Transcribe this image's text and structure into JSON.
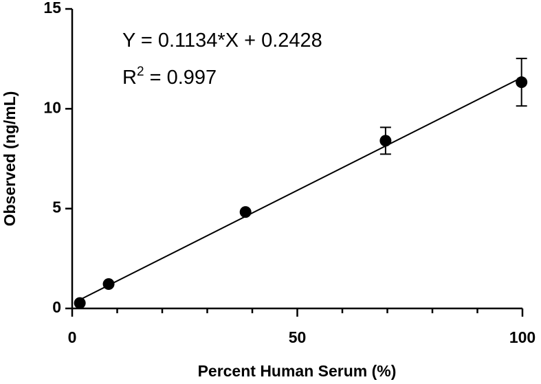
{
  "chart_data": {
    "type": "scatter",
    "x_label": "Percent Human Serum (%)",
    "y_label": "Observed (ng/mL)",
    "equation": "Y = 0.1134*X + 0.2428",
    "r_squared": {
      "base": "R",
      "sup": "2",
      "text": " = 0.997"
    },
    "fit": {
      "slope": 0.1134,
      "intercept": 0.2428
    },
    "series": [
      {
        "color": "#000000",
        "x": [
          1.7,
          8.1,
          38.5,
          69.6,
          99.8
        ],
        "values": [
          0.27,
          1.22,
          4.83,
          8.4,
          11.33
        ],
        "errors": [
          null,
          null,
          null,
          0.67,
          1.19
        ]
      }
    ],
    "xlim": [
      0,
      100
    ],
    "xticks": [
      0,
      50,
      100
    ],
    "xminor_ticks": [
      10,
      20,
      30,
      40,
      60,
      70,
      80,
      90
    ],
    "ylim": [
      0,
      15
    ],
    "yticks": [
      0,
      5,
      10,
      15
    ]
  }
}
